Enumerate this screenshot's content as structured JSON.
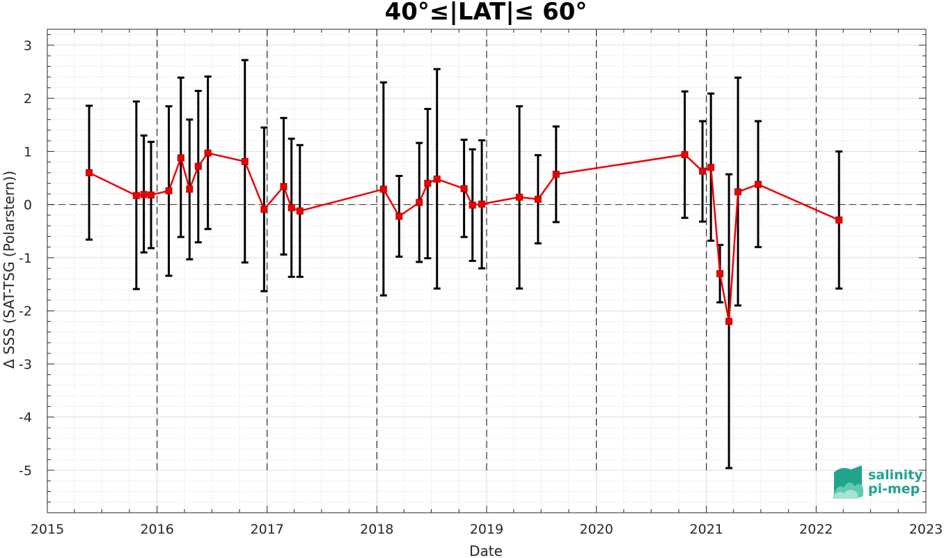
{
  "chart_data": {
    "type": "line",
    "title": "40°≤|LAT|≤ 60°",
    "xlabel": "Date",
    "ylabel": "Δ SSS (SAT-TSG (Polarstern))",
    "xlim": [
      "2015-01-01",
      "2023-01-01"
    ],
    "ylim": [
      -5.8,
      3.3
    ],
    "x_ticks": [
      "2015",
      "2016",
      "2017",
      "2018",
      "2019",
      "2020",
      "2021",
      "2022",
      "2023"
    ],
    "y_ticks": [
      "-5",
      "-4",
      "-3",
      "-2",
      "-1",
      "0",
      "1",
      "2",
      "3"
    ],
    "grid": true,
    "reference_line": 0,
    "year_boundaries": [
      "2016-01-01",
      "2017-01-01",
      "2018-01-01",
      "2019-01-01",
      "2020-01-01",
      "2021-01-01",
      "2022-01-01"
    ],
    "series": [
      {
        "color": "#ee0000",
        "marker": "square",
        "points": [
          {
            "x": "2015-05-20",
            "y": 0.6,
            "lo": -0.66,
            "hi": 1.86
          },
          {
            "x": "2015-10-24",
            "y": 0.17,
            "lo": -1.59,
            "hi": 1.94
          },
          {
            "x": "2015-11-18",
            "y": 0.19,
            "lo": -0.9,
            "hi": 1.3
          },
          {
            "x": "2015-12-12",
            "y": 0.18,
            "lo": -0.82,
            "hi": 1.18
          },
          {
            "x": "2016-02-09",
            "y": 0.26,
            "lo": -1.34,
            "hi": 1.85
          },
          {
            "x": "2016-03-20",
            "y": 0.88,
            "lo": -0.61,
            "hi": 2.39
          },
          {
            "x": "2016-04-18",
            "y": 0.29,
            "lo": -1.03,
            "hi": 1.6
          },
          {
            "x": "2016-05-17",
            "y": 0.72,
            "lo": -0.71,
            "hi": 2.14
          },
          {
            "x": "2016-06-18",
            "y": 0.97,
            "lo": -0.46,
            "hi": 2.41
          },
          {
            "x": "2016-10-19",
            "y": 0.81,
            "lo": -1.09,
            "hi": 2.72
          },
          {
            "x": "2016-12-22",
            "y": -0.09,
            "lo": -1.63,
            "hi": 1.45
          },
          {
            "x": "2017-02-25",
            "y": 0.34,
            "lo": -0.94,
            "hi": 1.63
          },
          {
            "x": "2017-03-23",
            "y": -0.06,
            "lo": -1.36,
            "hi": 1.24
          },
          {
            "x": "2017-04-20",
            "y": -0.12,
            "lo": -1.36,
            "hi": 1.12
          },
          {
            "x": "2018-01-23",
            "y": 0.29,
            "lo": -1.71,
            "hi": 2.3
          },
          {
            "x": "2018-03-16",
            "y": -0.22,
            "lo": -0.98,
            "hi": 0.54
          },
          {
            "x": "2018-05-22",
            "y": 0.04,
            "lo": -1.08,
            "hi": 1.16
          },
          {
            "x": "2018-06-19",
            "y": 0.4,
            "lo": -1.01,
            "hi": 1.8
          },
          {
            "x": "2018-07-20",
            "y": 0.48,
            "lo": -1.58,
            "hi": 2.55
          },
          {
            "x": "2018-10-18",
            "y": 0.3,
            "lo": -0.61,
            "hi": 1.22
          },
          {
            "x": "2018-11-15",
            "y": -0.01,
            "lo": -1.06,
            "hi": 1.04
          },
          {
            "x": "2018-12-16",
            "y": 0.01,
            "lo": -1.2,
            "hi": 1.21
          },
          {
            "x": "2019-04-20",
            "y": 0.14,
            "lo": -1.58,
            "hi": 1.85
          },
          {
            "x": "2019-06-21",
            "y": 0.1,
            "lo": -0.73,
            "hi": 0.93
          },
          {
            "x": "2019-08-20",
            "y": 0.57,
            "lo": -0.33,
            "hi": 1.47
          },
          {
            "x": "2020-10-21",
            "y": 0.94,
            "lo": -0.25,
            "hi": 2.13
          },
          {
            "x": "2020-12-19",
            "y": 0.63,
            "lo": -0.32,
            "hi": 1.57
          },
          {
            "x": "2021-01-16",
            "y": 0.7,
            "lo": -0.68,
            "hi": 2.09
          },
          {
            "x": "2021-02-15",
            "y": -1.3,
            "lo": -1.84,
            "hi": -0.76
          },
          {
            "x": "2021-03-17",
            "y": -2.2,
            "lo": -4.96,
            "hi": 0.57
          },
          {
            "x": "2021-04-16",
            "y": 0.24,
            "lo": -1.9,
            "hi": 2.39
          },
          {
            "x": "2021-06-22",
            "y": 0.38,
            "lo": -0.8,
            "hi": 1.57
          },
          {
            "x": "2022-03-18",
            "y": -0.29,
            "lo": -1.58,
            "hi": 1.0
          }
        ]
      }
    ]
  },
  "logo": {
    "line1": "salinity",
    "line2": "pi-mep",
    "color": "#1fa48e"
  }
}
